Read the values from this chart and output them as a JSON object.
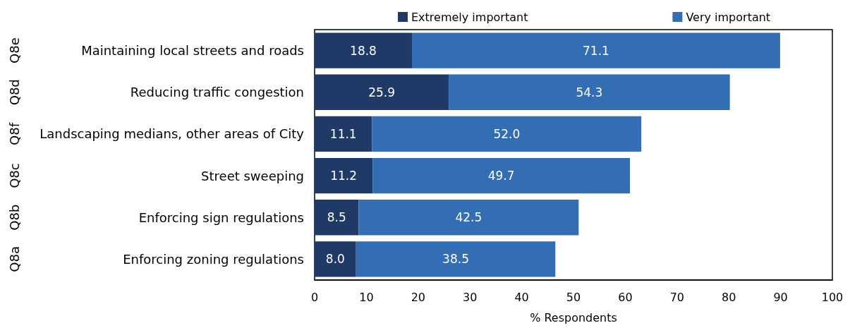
{
  "chart_data": {
    "type": "bar",
    "orientation": "horizontal",
    "stacked": true,
    "legend": "top",
    "xlabel": "% Respondents",
    "categories": [
      "Maintaining local streets and roads",
      "Reducing traffic congestion",
      "Landscaping medians, other areas of City",
      "Street sweeping",
      "Enforcing sign regulations",
      "Enforcing zoning regulations"
    ],
    "series": [
      {
        "name": "Extremely important",
        "color": "#1f3a66",
        "values": [
          18.8,
          25.9,
          11.1,
          11.2,
          8.5,
          8.0
        ],
        "value_labels": [
          "18.8",
          "25.9",
          "11.1",
          "11.2",
          "8.5",
          "8.0"
        ]
      },
      {
        "name": "Very important",
        "color": "#336db3",
        "values": [
          71.1,
          54.3,
          52.0,
          49.7,
          42.5,
          38.5
        ],
        "value_labels": [
          "71.1",
          "54.3",
          "52.0",
          "49.7",
          "42.5",
          "38.5"
        ]
      }
    ],
    "xlim": [
      0,
      100
    ],
    "xticks": [
      0,
      10,
      20,
      30,
      40,
      50,
      60,
      70,
      80,
      90,
      100
    ],
    "annotations": [
      "Q8e",
      "Q8d",
      "Q8f",
      "Q8c",
      "Q8b",
      "Q8a"
    ]
  }
}
